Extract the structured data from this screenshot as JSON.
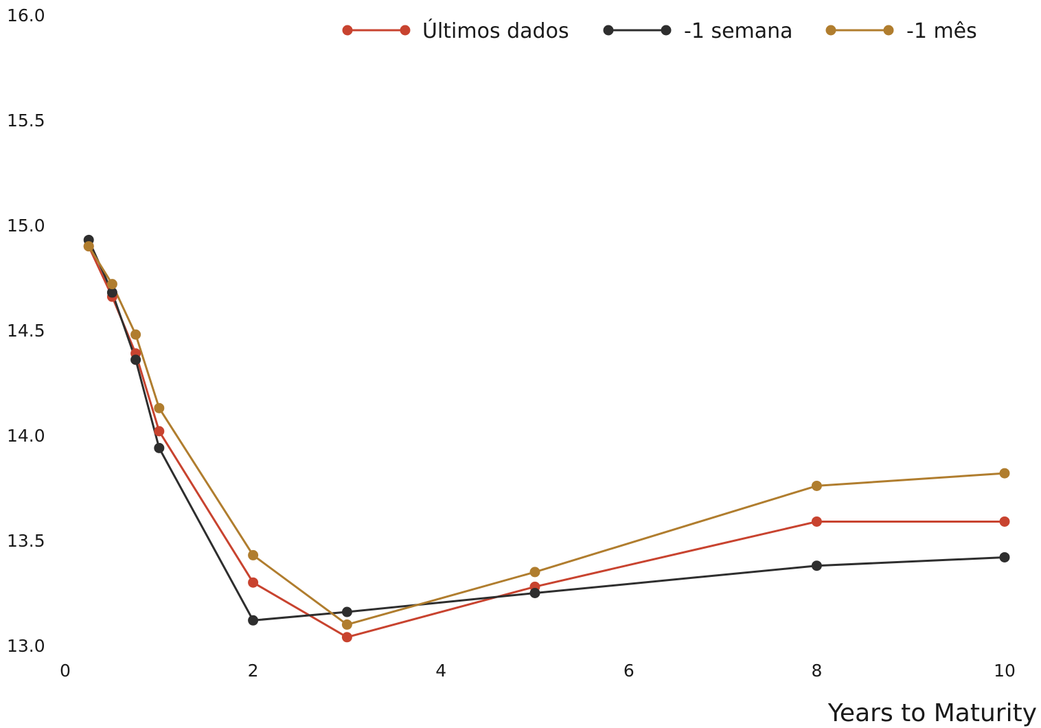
{
  "chart_data": {
    "type": "line",
    "title": "",
    "xlabel": "Years to Maturity",
    "ylabel": "",
    "xlim": [
      0,
      10
    ],
    "ylim": [
      13.0,
      16.0
    ],
    "x_ticks": [
      0,
      2,
      4,
      6,
      8,
      10
    ],
    "x_tick_labels": [
      "0",
      "2",
      "4",
      "6",
      "8",
      "10"
    ],
    "y_ticks": [
      13.0,
      13.5,
      14.0,
      14.5,
      15.0,
      15.5,
      16.0
    ],
    "y_tick_labels": [
      "13.0",
      "13.5",
      "14.0",
      "14.5",
      "15.0",
      "15.5",
      "16.0"
    ],
    "grid": false,
    "legend_position": "top-right",
    "series": [
      {
        "name": "Últimos dados",
        "color": "#c8432f",
        "x": [
          0.25,
          0.5,
          0.75,
          1,
          2,
          3,
          5,
          8,
          10
        ],
        "y": [
          14.9,
          14.66,
          14.39,
          14.02,
          13.3,
          13.04,
          13.28,
          13.59,
          13.59
        ]
      },
      {
        "name": "-1 semana",
        "color": "#2e2e2e",
        "x": [
          0.25,
          0.5,
          0.75,
          1,
          2,
          3,
          5,
          8,
          10
        ],
        "y": [
          14.93,
          14.68,
          14.36,
          13.94,
          13.12,
          13.16,
          13.25,
          13.38,
          13.42
        ]
      },
      {
        "name": "-1 mês",
        "color": "#b07d2e",
        "x": [
          0.25,
          0.5,
          0.75,
          1,
          2,
          3,
          5,
          8,
          10
        ],
        "y": [
          14.9,
          14.72,
          14.48,
          14.13,
          13.43,
          13.1,
          13.35,
          13.76,
          13.82
        ]
      }
    ]
  }
}
